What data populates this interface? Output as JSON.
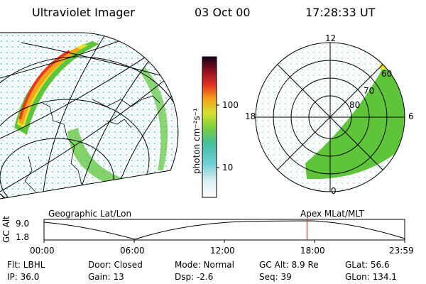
{
  "header": {
    "title": "Ultraviolet Imager",
    "date": "03 Oct 00",
    "time": "17:28:33 UT"
  },
  "colorbar": {
    "unit": "photon cm⁻²s⁻¹",
    "ticks": [
      "100",
      "10"
    ]
  },
  "polar_plot": {
    "mlt_labels": [
      "12",
      "18",
      "6",
      "0"
    ],
    "lat_labels": [
      "60",
      "70",
      "80"
    ]
  },
  "map_labels": {
    "left": "Geographic Lat/Lon",
    "right": "Apex MLat/MLT"
  },
  "altitude_plot": {
    "ylabel": "GC Alt",
    "y_ticks": [
      "9.0",
      "1.8"
    ],
    "x_ticks": [
      "00:00",
      "06:00",
      "12:00",
      "18:00",
      "23:59"
    ],
    "current_time_fraction": 0.729
  },
  "info": {
    "filter": "Flt: LBHL",
    "ip": "IP: 36.0",
    "door": "Door: Closed",
    "gain": "Gain: 13",
    "mode": "Mode: Normal",
    "dsp": "Dsp:    -2.6",
    "gc_alt": "GC Alt: 8.9 Re",
    "seq": "Seq: 39",
    "glat": "GLat:   56.6",
    "glon": "GLon: 134.1"
  },
  "colors": {
    "aurora_red": "#e83a1c",
    "aurora_orange": "#f6a21a",
    "aurora_yellow": "#e8e02a",
    "aurora_green": "#5ec43a",
    "noise_cyan": "#5fd0d6",
    "marker_red": "#d01010"
  }
}
